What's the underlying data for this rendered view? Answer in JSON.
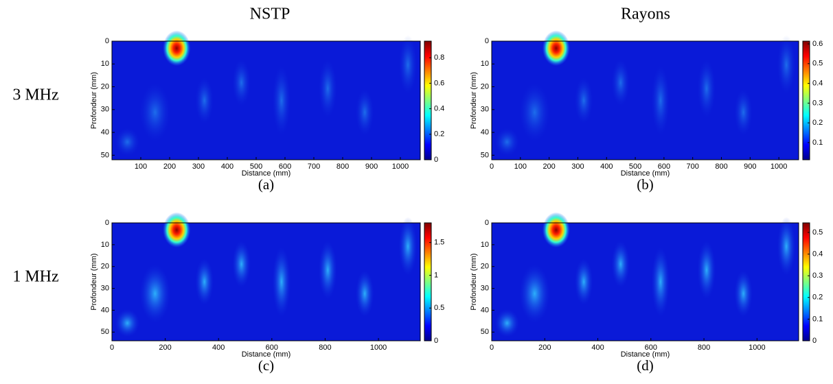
{
  "column_titles": [
    "NSTP",
    "Rayons"
  ],
  "row_labels": [
    "3 MHz",
    "1 MHz"
  ],
  "chart_data": [
    {
      "type": "heatmap",
      "caption": "(a)",
      "xlabel": "Distance (mm)",
      "ylabel": "Profondeur (mm)",
      "colormap": "jet",
      "y_inverted": true,
      "xlim": [
        0,
        1069
      ],
      "xticks": [
        100,
        200,
        300,
        400,
        500,
        600,
        700,
        800,
        900,
        1000
      ],
      "ylim": [
        0,
        52
      ],
      "yticks": [
        0,
        10,
        20,
        30,
        40,
        50
      ],
      "clim": [
        0,
        0.93
      ],
      "cticks": [
        0,
        0.2,
        0.4,
        0.6,
        0.8
      ]
    },
    {
      "type": "heatmap",
      "caption": "(b)",
      "xlabel": "Distance (mm)",
      "ylabel": "Profondeur (mm)",
      "colormap": "jet",
      "y_inverted": true,
      "xlim": [
        0,
        1069
      ],
      "xticks": [
        0,
        100,
        200,
        300,
        400,
        500,
        600,
        700,
        800,
        900,
        1000
      ],
      "ylim": [
        0,
        52
      ],
      "yticks": [
        0,
        10,
        20,
        30,
        40,
        50
      ],
      "clim": [
        0.013,
        0.614
      ],
      "cticks": [
        0.1,
        0.2,
        0.3,
        0.4,
        0.5,
        0.6
      ]
    },
    {
      "type": "heatmap",
      "caption": "(c)",
      "xlabel": "Distance (mm)",
      "ylabel": "Profondeur (mm)",
      "colormap": "jet",
      "y_inverted": true,
      "xlim": [
        0,
        1157
      ],
      "xticks": [
        0,
        200,
        400,
        600,
        800,
        1000
      ],
      "ylim": [
        0,
        54
      ],
      "yticks": [
        0,
        10,
        20,
        30,
        40,
        50
      ],
      "clim": [
        0,
        1.8
      ],
      "cticks": [
        0,
        0.5,
        1,
        1.5
      ]
    },
    {
      "type": "heatmap",
      "caption": "(d)",
      "xlabel": "Distance (mm)",
      "ylabel": "Profondeur (mm)",
      "colormap": "jet",
      "y_inverted": true,
      "xlim": [
        0,
        1157
      ],
      "xticks": [
        0,
        200,
        400,
        600,
        800,
        1000
      ],
      "ylim": [
        0,
        54
      ],
      "yticks": [
        0,
        10,
        20,
        30,
        40,
        50
      ],
      "clim": [
        0,
        0.544
      ],
      "cticks": [
        0,
        0.1,
        0.2,
        0.3,
        0.4,
        0.5
      ]
    }
  ]
}
